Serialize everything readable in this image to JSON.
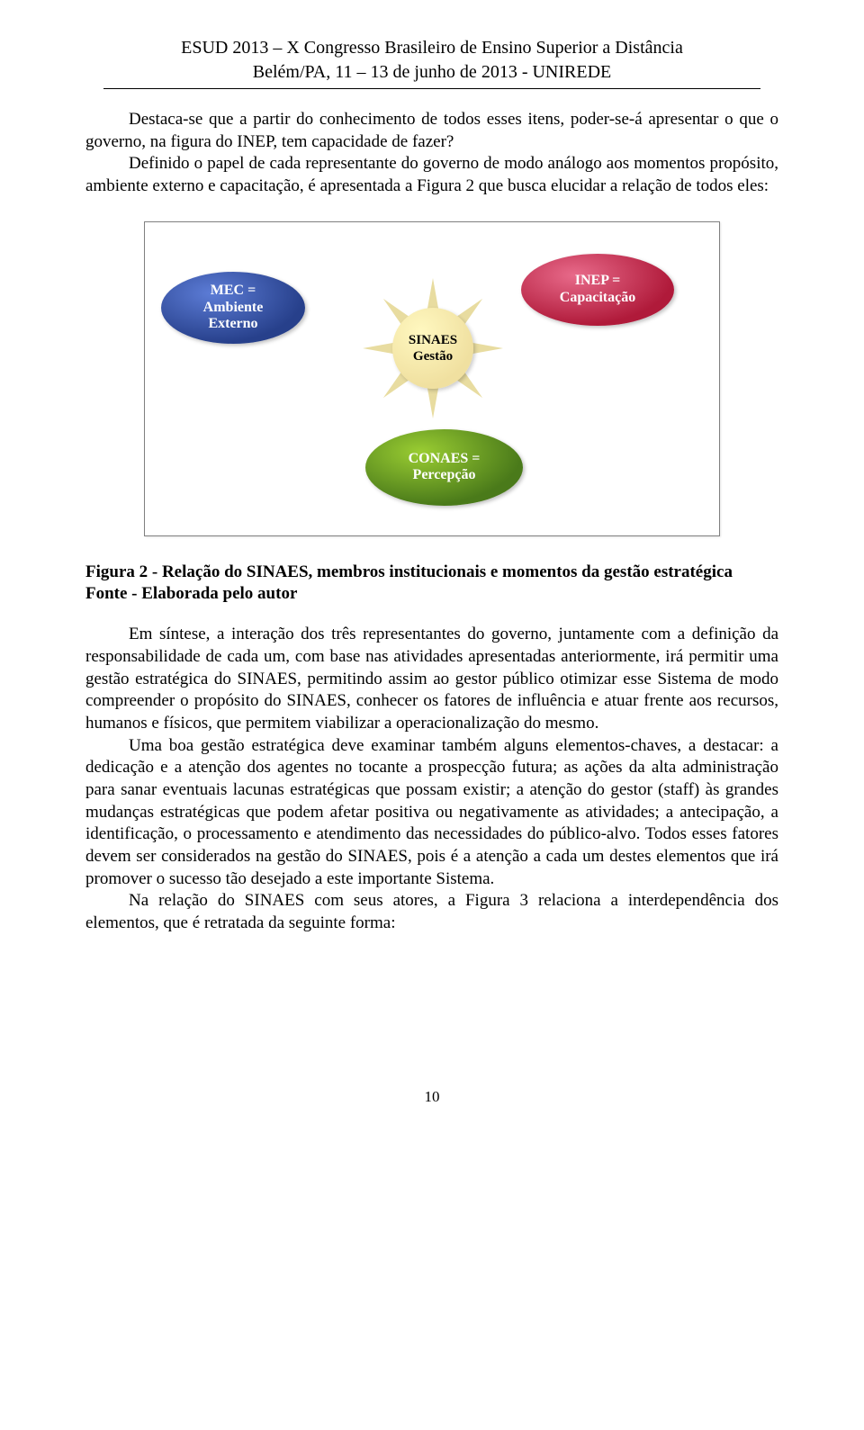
{
  "header": {
    "line1": "ESUD 2013 – X Congresso Brasileiro de Ensino Superior a Distância",
    "line2": "Belém/PA, 11 – 13 de junho de 2013 - UNIREDE"
  },
  "para1": "Destaca-se que a partir do conhecimento de todos esses itens, poder-se-á apresentar o que o governo, na figura do INEP, tem capacidade de fazer?",
  "para2": "Definido o papel de cada representante do governo de modo análogo aos momentos propósito, ambiente externo e capacitação, é apresentada a Figura 2 que busca elucidar a relação de todos eles:",
  "diagram": {
    "type": "infographic",
    "background_color": "#ffffff",
    "border_color": "#808080",
    "nodes": {
      "mec": {
        "line1": "MEC =",
        "line2": "Ambiente",
        "line3": "Externo",
        "fill": "#27408b",
        "text_color": "#ffffff"
      },
      "inep": {
        "line1": "INEP =",
        "line2": "Capacitação",
        "fill": "#b01a3a",
        "text_color": "#ffffff"
      },
      "conaes": {
        "line1": "CONAES =",
        "line2": "Percepção",
        "fill": "#4a7a1a",
        "text_color": "#ffffff"
      },
      "center": {
        "line1": "SINAES",
        "line2": "Gestão",
        "fill": "#f5e9a8",
        "text_color": "#000000"
      }
    },
    "star": {
      "rays": 8,
      "ray_color": "#e8dca0"
    }
  },
  "caption": {
    "line1": "Figura 2 - Relação do SINAES, membros institucionais e momentos da gestão estratégica",
    "line2": "Fonte - Elaborada pelo autor"
  },
  "para3": "Em síntese, a interação dos três representantes do governo, juntamente com a definição da responsabilidade de cada um, com base nas atividades apresentadas anteriormente, irá permitir uma gestão estratégica do SINAES, permitindo assim ao gestor público otimizar esse Sistema de modo compreender o propósito do SINAES, conhecer os fatores de influência e atuar frente aos recursos, humanos e físicos, que permitem viabilizar a operacionalização do mesmo.",
  "para4": "Uma boa gestão estratégica deve examinar também alguns elementos-chaves, a destacar: a dedicação e a atenção dos agentes no tocante a prospecção futura; as ações da alta administração para sanar eventuais lacunas estratégicas que possam existir; a atenção do gestor (staff)  às grandes mudanças estratégicas que podem afetar  positiva ou negativamente as atividades; a antecipação, a identificação, o processamento e atendimento das necessidades do público-alvo. Todos esses fatores devem ser considerados na gestão do SINAES, pois é a atenção a cada um destes elementos que irá promover o sucesso tão desejado a este importante Sistema.",
  "para5": "Na relação do SINAES com seus atores, a Figura 3 relaciona a interdependência dos elementos, que é retratada da seguinte forma:",
  "page_number": "10"
}
